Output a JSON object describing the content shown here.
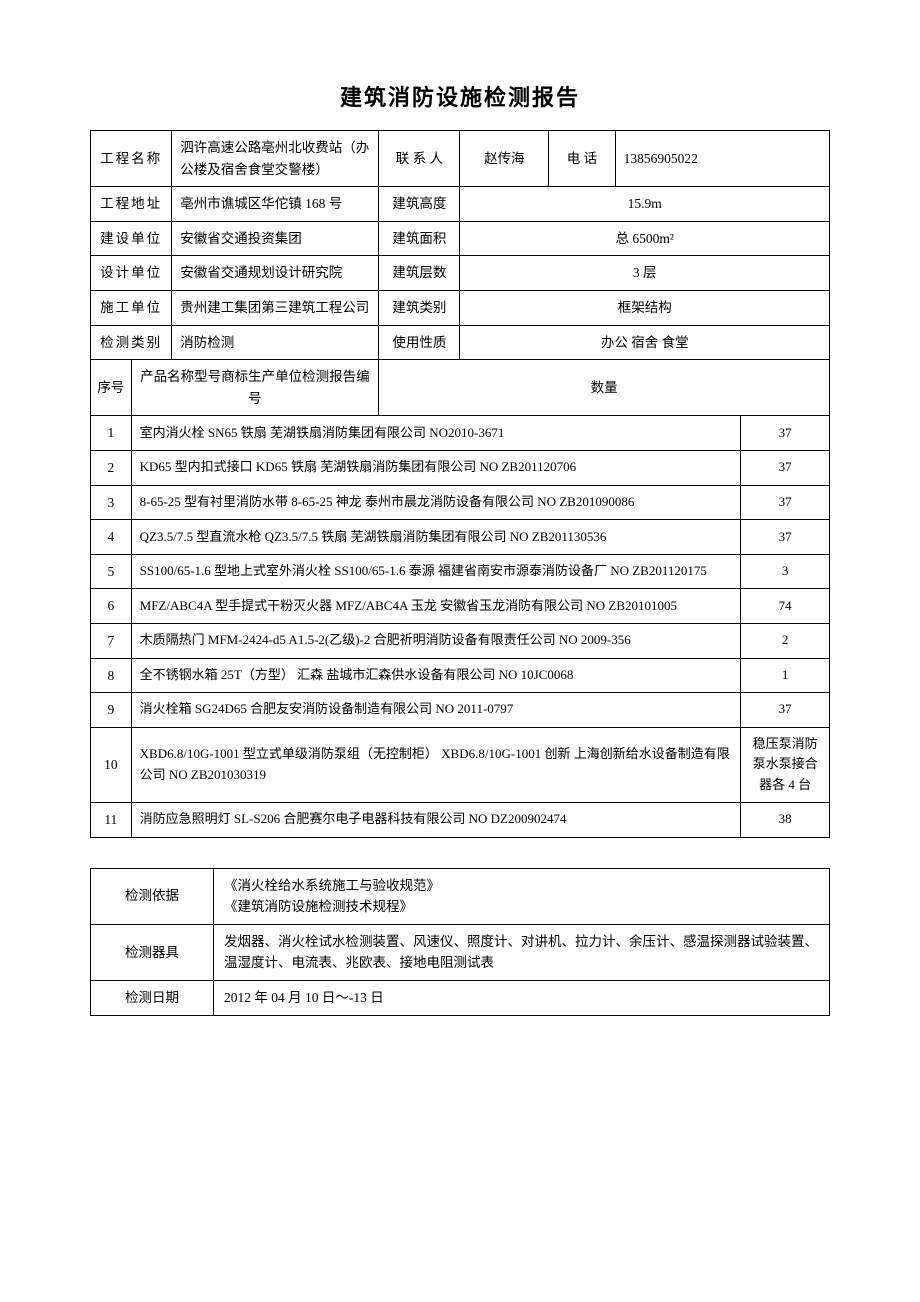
{
  "title": "建筑消防设施检测报告",
  "header": {
    "labels": {
      "projectName": "工程名称",
      "contact": "联 系 人",
      "phone": "电  话",
      "projectAddress": "工程地址",
      "buildingHeight": "建筑高度",
      "constructionUnit": "建设单位",
      "buildingArea": "建筑面积",
      "designUnit": "设计单位",
      "floors": "建筑层数",
      "contractor": "施工单位",
      "buildingType": "建筑类别",
      "inspectionType": "检测类别",
      "usage": "使用性质"
    },
    "values": {
      "projectName": "泗许高速公路亳州北收费站（办公楼及宿舍食堂交警楼）",
      "contact": "赵传海",
      "phone": "13856905022",
      "projectAddress": "亳州市谯城区华佗镇 168 号",
      "buildingHeight": "15.9m",
      "constructionUnit": "安徽省交通投资集团",
      "buildingArea": "总 6500m²",
      "designUnit": "安徽省交通规划设计研究院",
      "floors": "3 层",
      "contractor": "贵州建工集团第三建筑工程公司",
      "buildingType": "框架结构",
      "inspectionType": "消防检测",
      "usage": "办公 宿舍 食堂"
    }
  },
  "listHeader": {
    "idx": "序号",
    "desc": "产品名称型号商标生产单位检测报告编号",
    "qty": "数量"
  },
  "items": [
    {
      "idx": "1",
      "desc": "室内消火栓 SN65 铁扇 芜湖铁扇消防集团有限公司 NO2010-3671",
      "qty": "37"
    },
    {
      "idx": "2",
      "desc": "KD65 型内扣式接口 KD65 铁扇 芜湖铁扇消防集团有限公司 NO ZB201120706",
      "qty": "37"
    },
    {
      "idx": "3",
      "desc": "8-65-25 型有衬里消防水带 8-65-25 神龙 泰州市晨龙消防设备有限公司 NO ZB201090086",
      "qty": "37"
    },
    {
      "idx": "4",
      "desc": "QZ3.5/7.5 型直流水枪 QZ3.5/7.5 铁扇 芜湖铁扇消防集团有限公司 NO ZB201130536",
      "qty": "37"
    },
    {
      "idx": "5",
      "desc": "SS100/65-1.6 型地上式室外消火栓 SS100/65-1.6 泰源 福建省南安市源泰消防设备厂 NO ZB201120175",
      "qty": "3"
    },
    {
      "idx": "6",
      "desc": "MFZ/ABC4A 型手提式干粉灭火器 MFZ/ABC4A 玉龙 安徽省玉龙消防有限公司 NO ZB20101005",
      "qty": "74"
    },
    {
      "idx": "7",
      "desc": "木质隔热门 MFM-2424-d5 A1.5-2(乙级)-2   合肥祈明消防设备有限责任公司 NO 2009-356",
      "qty": "2"
    },
    {
      "idx": "8",
      "desc": "全不锈钢水箱 25T（方型） 汇森 盐城市汇森供水设备有限公司 NO 10JC0068",
      "qty": "1"
    },
    {
      "idx": "9",
      "desc": "消火栓箱 SG24D65 合肥友安消防设备制造有限公司 NO 2011-0797",
      "qty": "37"
    },
    {
      "idx": "10",
      "desc": "XBD6.8/10G-1001 型立式单级消防泵组（无控制柜） XBD6.8/10G-1001 创新 上海创新给水设备制造有限公司 NO ZB201030319",
      "qty": "稳压泵消防泵水泵接合器各 4 台"
    },
    {
      "idx": "11",
      "desc": "消防应急照明灯 SL-S206 合肥赛尔电子电器科技有限公司 NO DZ200902474",
      "qty": "38"
    }
  ],
  "footer": {
    "labels": {
      "basis": "检测依据",
      "instruments": "检测器具",
      "date": "检测日期"
    },
    "values": {
      "basis": "《消火栓给水系统施工与验收规范》\n《建筑消防设施检测技术规程》",
      "instruments": "发烟器、消火栓试水检测装置、风速仪、照度计、对讲机、拉力计、余压计、感温探测器试验装置、温湿度计、电流表、兆欧表、接地电阻测试表",
      "date": "2012 年 04 月 10 日～-13 日"
    }
  }
}
